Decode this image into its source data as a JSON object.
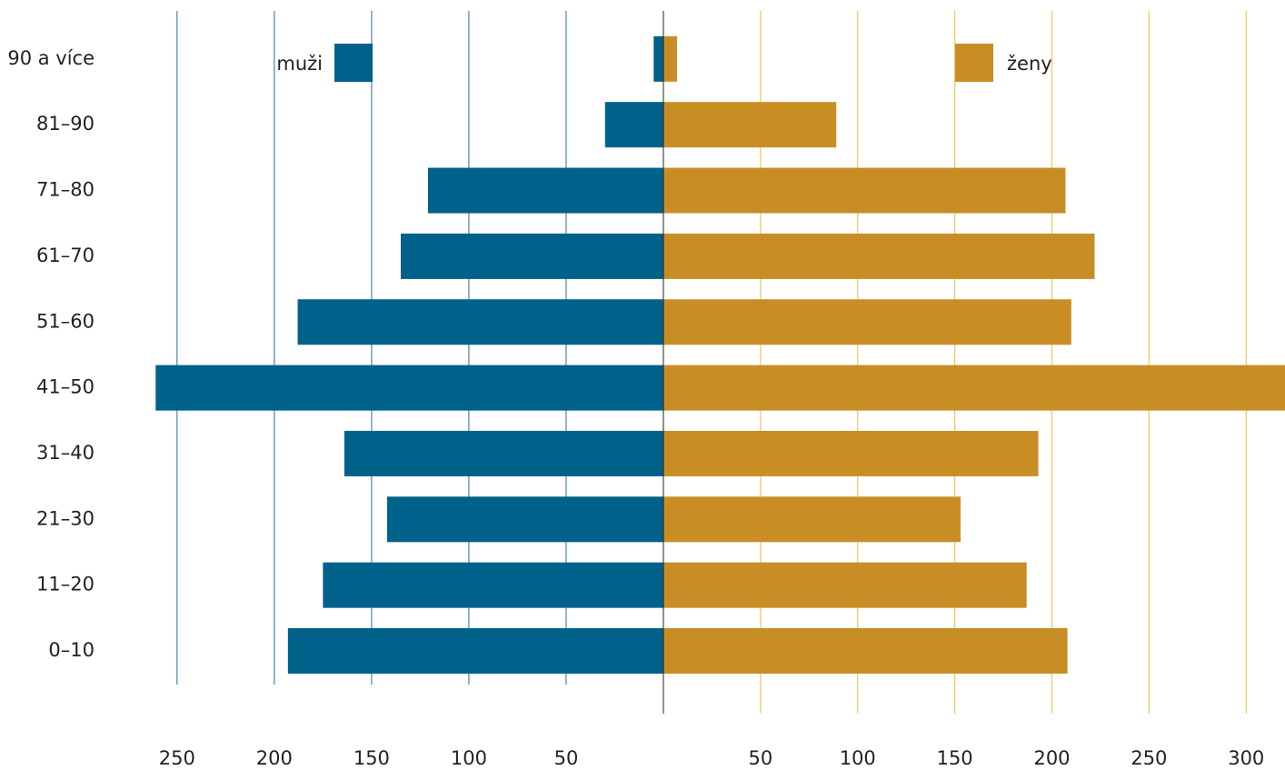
{
  "chart_data": {
    "type": "pyramid",
    "categories": [
      "0–10",
      "11–20",
      "21–30",
      "31–40",
      "41–50",
      "51–60",
      "61–70",
      "71–80",
      "81–90",
      "90 a více"
    ],
    "series": [
      {
        "name": "muži",
        "color": "#00618a",
        "grid_color": "#4a86a8",
        "side": "left",
        "values": [
          193,
          175,
          142,
          164,
          261,
          188,
          135,
          121,
          30,
          5
        ],
        "xlim": [
          0,
          341
        ],
        "xticks": [
          50,
          100,
          150,
          200,
          250
        ]
      },
      {
        "name": "ženy",
        "color": "#c88e25",
        "grid_color": "#f2c55a",
        "side": "right",
        "values": [
          208,
          187,
          153,
          193,
          320,
          210,
          222,
          207,
          89,
          7
        ],
        "xlim": [
          0,
          320
        ],
        "xticks": [
          50,
          100,
          150,
          200,
          250,
          300
        ]
      }
    ]
  }
}
